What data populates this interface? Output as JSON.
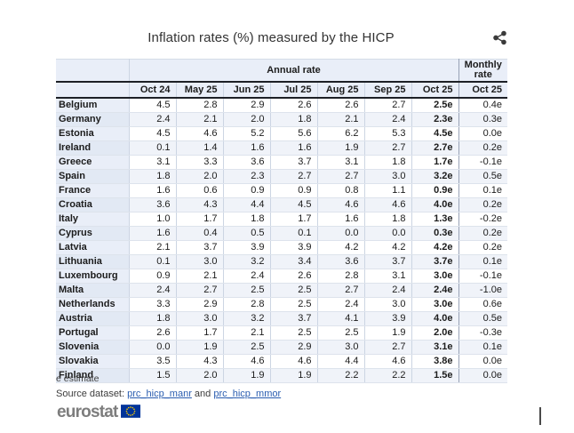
{
  "title": "Inflation rates (%) measured by the HICP",
  "chart_data": {
    "type": "table",
    "title": "Inflation rates (%) measured by the HICP",
    "group_headers": {
      "annual": "Annual rate",
      "monthly": "Monthly rate"
    },
    "annual_columns": [
      "Oct 24",
      "May 25",
      "Jun 25",
      "Jul 25",
      "Aug 25",
      "Sep 25",
      "Oct 25"
    ],
    "monthly_column": "Oct 25",
    "rows": [
      {
        "country": "Belgium",
        "annual": [
          "4.5",
          "2.8",
          "2.9",
          "2.6",
          "2.6",
          "2.7",
          "2.5e"
        ],
        "monthly": "0.4e"
      },
      {
        "country": "Germany",
        "annual": [
          "2.4",
          "2.1",
          "2.0",
          "1.8",
          "2.1",
          "2.4",
          "2.3e"
        ],
        "monthly": "0.3e"
      },
      {
        "country": "Estonia",
        "annual": [
          "4.5",
          "4.6",
          "5.2",
          "5.6",
          "6.2",
          "5.3",
          "4.5e"
        ],
        "monthly": "0.0e"
      },
      {
        "country": "Ireland",
        "annual": [
          "0.1",
          "1.4",
          "1.6",
          "1.6",
          "1.9",
          "2.7",
          "2.7e"
        ],
        "monthly": "0.2e"
      },
      {
        "country": "Greece",
        "annual": [
          "3.1",
          "3.3",
          "3.6",
          "3.7",
          "3.1",
          "1.8",
          "1.7e"
        ],
        "monthly": "-0.1e"
      },
      {
        "country": "Spain",
        "annual": [
          "1.8",
          "2.0",
          "2.3",
          "2.7",
          "2.7",
          "3.0",
          "3.2e"
        ],
        "monthly": "0.5e"
      },
      {
        "country": "France",
        "annual": [
          "1.6",
          "0.6",
          "0.9",
          "0.9",
          "0.8",
          "1.1",
          "0.9e"
        ],
        "monthly": "0.1e"
      },
      {
        "country": "Croatia",
        "annual": [
          "3.6",
          "4.3",
          "4.4",
          "4.5",
          "4.6",
          "4.6",
          "4.0e"
        ],
        "monthly": "0.2e"
      },
      {
        "country": "Italy",
        "annual": [
          "1.0",
          "1.7",
          "1.8",
          "1.7",
          "1.6",
          "1.8",
          "1.3e"
        ],
        "monthly": "-0.2e"
      },
      {
        "country": "Cyprus",
        "annual": [
          "1.6",
          "0.4",
          "0.5",
          "0.1",
          "0.0",
          "0.0",
          "0.3e"
        ],
        "monthly": "0.2e"
      },
      {
        "country": "Latvia",
        "annual": [
          "2.1",
          "3.7",
          "3.9",
          "3.9",
          "4.2",
          "4.2",
          "4.2e"
        ],
        "monthly": "0.2e"
      },
      {
        "country": "Lithuania",
        "annual": [
          "0.1",
          "3.0",
          "3.2",
          "3.4",
          "3.6",
          "3.7",
          "3.7e"
        ],
        "monthly": "0.1e"
      },
      {
        "country": "Luxembourg",
        "annual": [
          "0.9",
          "2.1",
          "2.4",
          "2.6",
          "2.8",
          "3.1",
          "3.0e"
        ],
        "monthly": "-0.1e"
      },
      {
        "country": "Malta",
        "annual": [
          "2.4",
          "2.7",
          "2.5",
          "2.5",
          "2.7",
          "2.4",
          "2.4e"
        ],
        "monthly": "-1.0e"
      },
      {
        "country": "Netherlands",
        "annual": [
          "3.3",
          "2.9",
          "2.8",
          "2.5",
          "2.4",
          "3.0",
          "3.0e"
        ],
        "monthly": "0.6e"
      },
      {
        "country": "Austria",
        "annual": [
          "1.8",
          "3.0",
          "3.2",
          "3.7",
          "4.1",
          "3.9",
          "4.0e"
        ],
        "monthly": "0.5e"
      },
      {
        "country": "Portugal",
        "annual": [
          "2.6",
          "1.7",
          "2.1",
          "2.5",
          "2.5",
          "1.9",
          "2.0e"
        ],
        "monthly": "-0.3e"
      },
      {
        "country": "Slovenia",
        "annual": [
          "0.0",
          "1.9",
          "2.5",
          "2.9",
          "3.0",
          "2.7",
          "3.1e"
        ],
        "monthly": "0.1e"
      },
      {
        "country": "Slovakia",
        "annual": [
          "3.5",
          "4.3",
          "4.6",
          "4.6",
          "4.4",
          "4.6",
          "3.8e"
        ],
        "monthly": "0.0e"
      },
      {
        "country": "Finland",
        "annual": [
          "1.5",
          "2.0",
          "1.9",
          "1.9",
          "2.2",
          "2.2",
          "1.5e"
        ],
        "monthly": "0.0e"
      }
    ]
  },
  "footnote": "e estimate",
  "source": {
    "prefix": "Source dataset: ",
    "link1": "prc_hicp_manr",
    "conjunction": " and ",
    "link2": "prc_hicp_mmor"
  },
  "logo": {
    "text": "eurostat"
  },
  "colors": {
    "header_bg": "#e9eef8",
    "row_stripe": "#f0f3f9",
    "country_col_stripe": "#e2e9f4",
    "dark_rule": "#1d2026",
    "grid_line": "#ccd5e3",
    "link": "#2a5db0",
    "eu_blue": "#003399",
    "star_yellow": "#ffcc00",
    "logo_gray": "#7d7d7d"
  }
}
